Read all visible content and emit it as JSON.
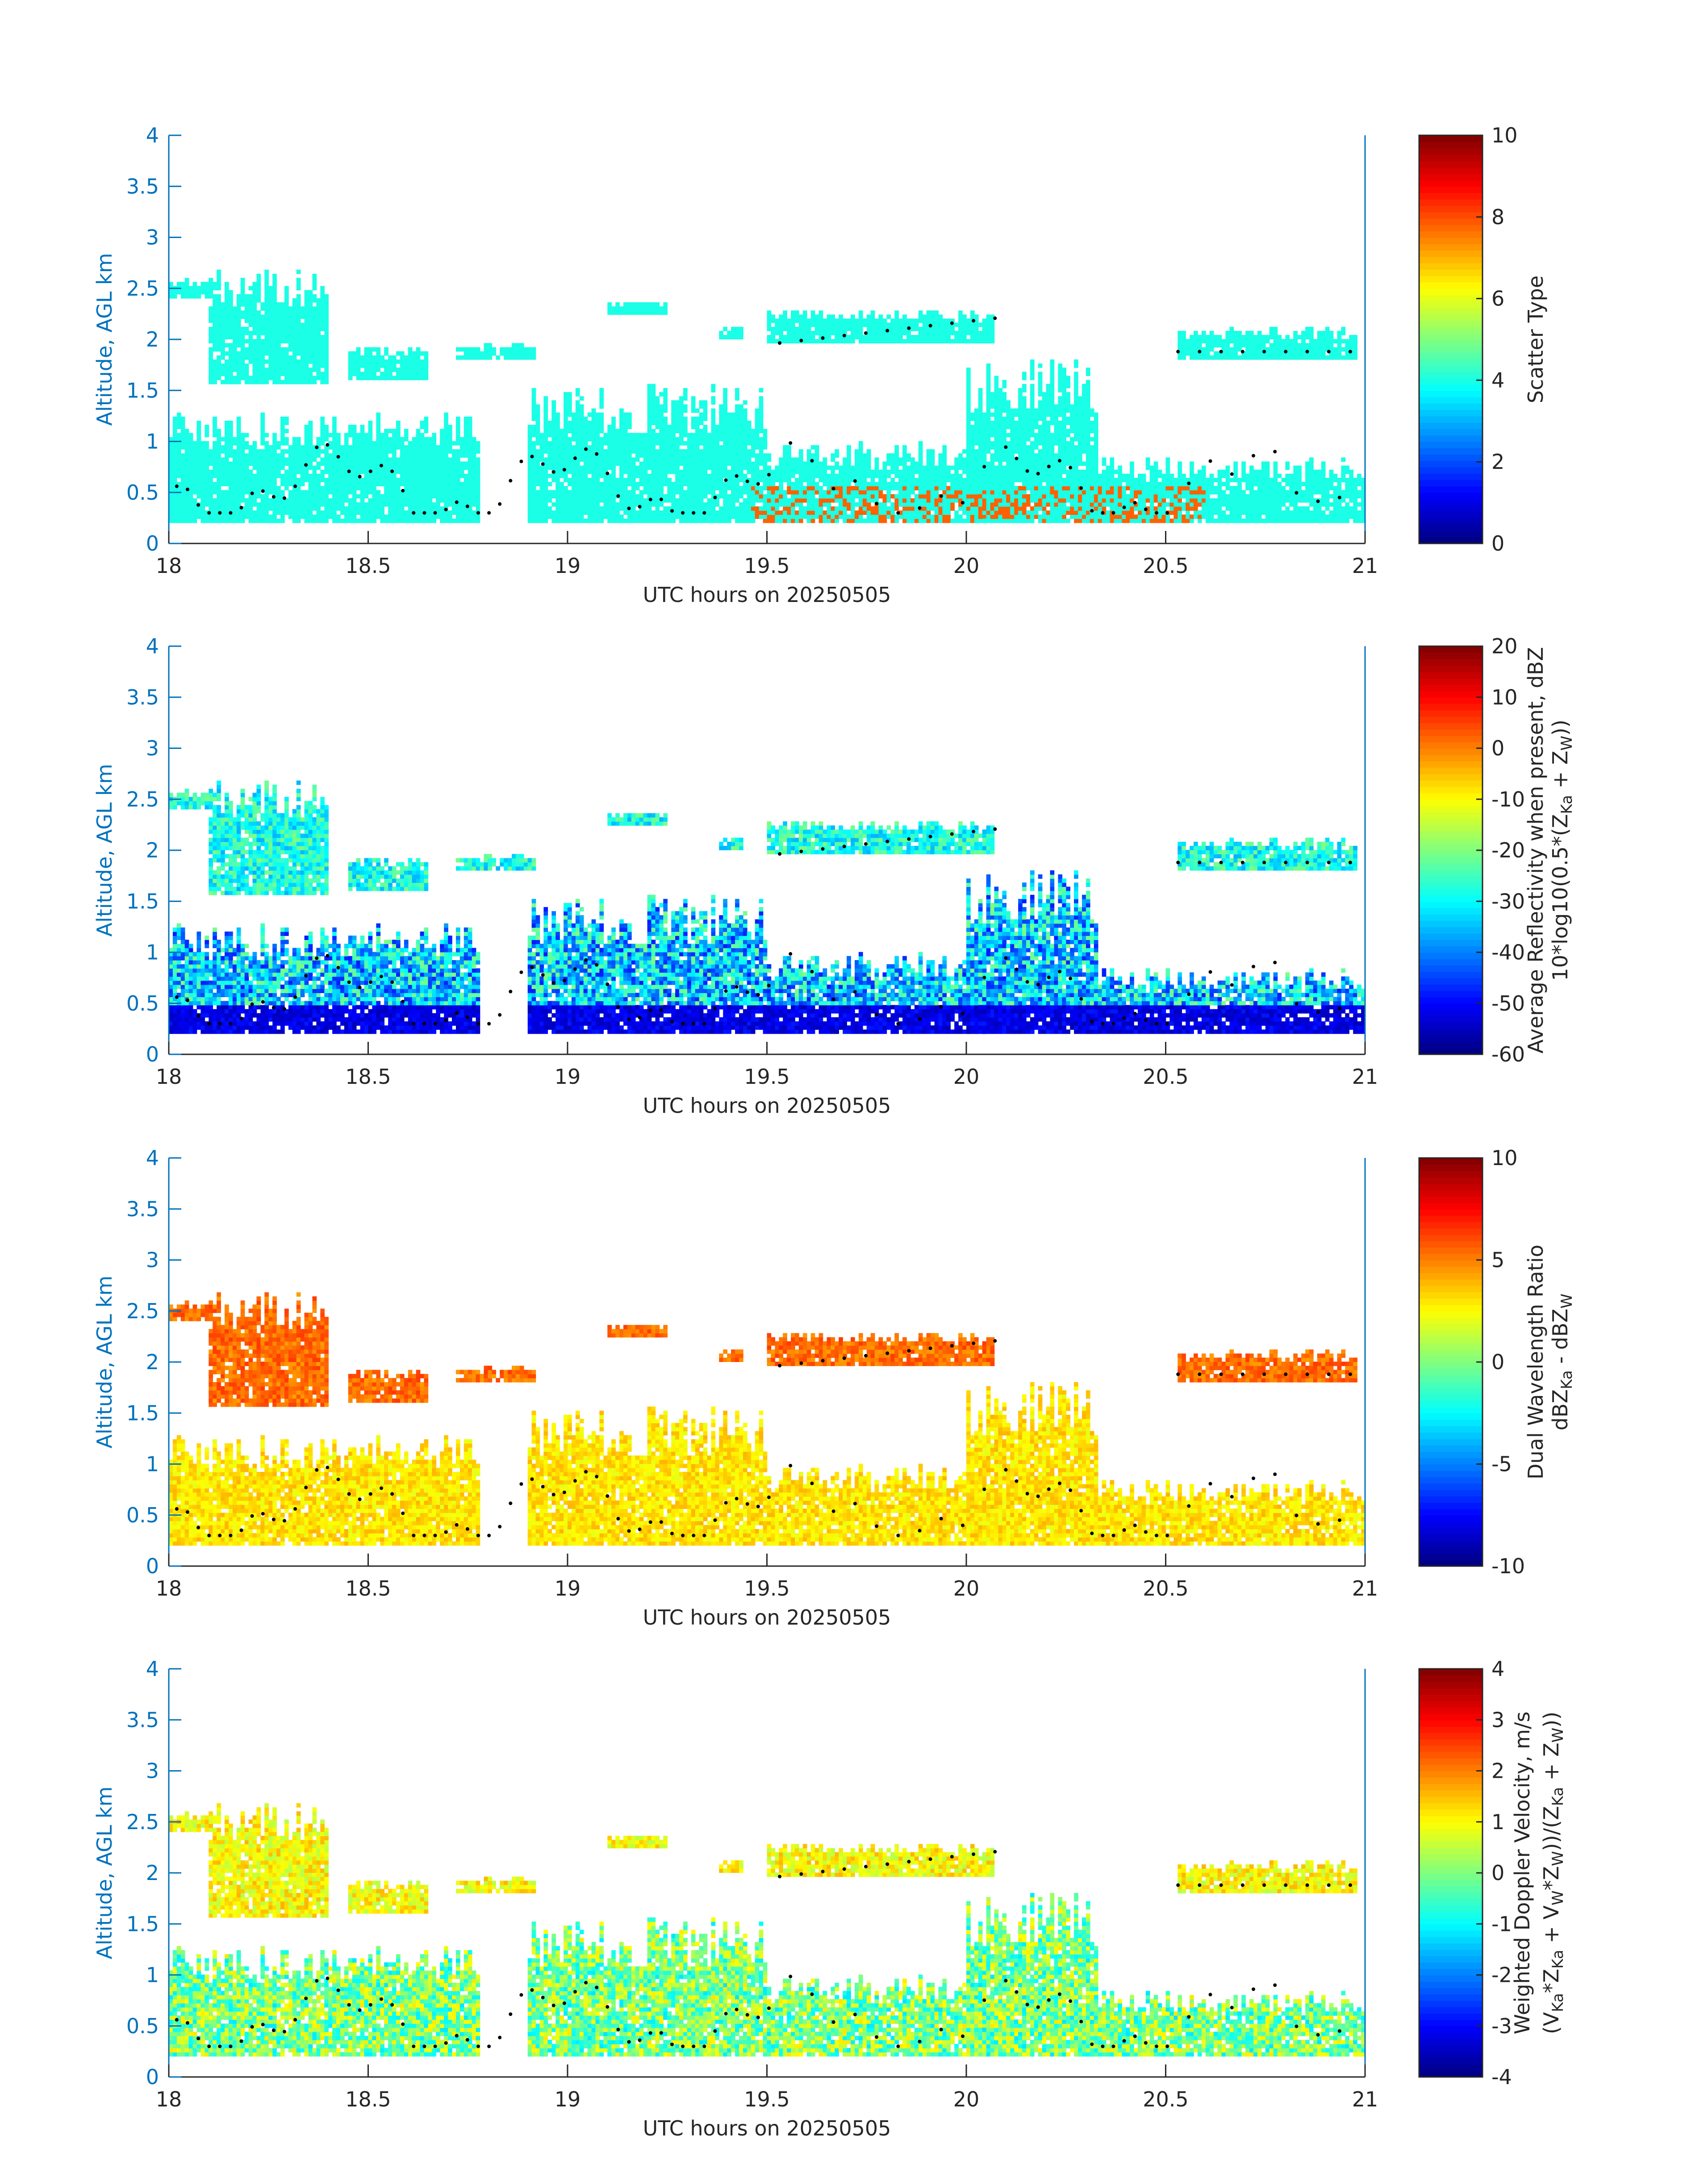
{
  "figure": {
    "background": "#ffffff",
    "axis_color": "#0072bd",
    "text_color": "#262626"
  },
  "chart_data": [
    {
      "type": "heatmap",
      "title": "",
      "xlabel": "UTC hours on 20250505",
      "ylabel": "Altitude, AGL km",
      "xlim": [
        18,
        21
      ],
      "ylim": [
        0,
        4
      ],
      "xticks": [
        "18",
        "18.5",
        "19",
        "19.5",
        "20",
        "20.5",
        "21"
      ],
      "yticks": [
        "0",
        "0.5",
        "1",
        "1.5",
        "2",
        "2.5",
        "3",
        "3.5",
        "4"
      ],
      "colorbar": {
        "label_lines": [
          "Scatter Type"
        ],
        "ticks": [
          "0",
          "2",
          "4",
          "6",
          "8",
          "10"
        ],
        "range": [
          0,
          10
        ],
        "colormap": "jet"
      },
      "dominant_value": 4,
      "secondary_value": 7.8,
      "dotted_line": "cloud-base marker (black dots)"
    },
    {
      "type": "heatmap",
      "title": "",
      "xlabel": "UTC hours on 20250505",
      "ylabel": "Altitude, AGL km",
      "xlim": [
        18,
        21
      ],
      "ylim": [
        0,
        4
      ],
      "xticks": [
        "18",
        "18.5",
        "19",
        "19.5",
        "20",
        "20.5",
        "21"
      ],
      "yticks": [
        "0",
        "0.5",
        "1",
        "1.5",
        "2",
        "2.5",
        "3",
        "3.5",
        "4"
      ],
      "colorbar": {
        "label_lines": [
          "Average Reflectivity when present, dBZ",
          "10*log10(0.5*(Z",
          "Ka",
          " + Z",
          "W",
          "))"
        ],
        "ticks": [
          "-60",
          "-50",
          "-40",
          "-30",
          "-20",
          "-10",
          "0",
          "10",
          "20"
        ],
        "range": [
          -60,
          20
        ],
        "colormap": "jet"
      }
    },
    {
      "type": "heatmap",
      "title": "",
      "xlabel": "UTC hours on 20250505",
      "ylabel": "Altitude, AGL km",
      "xlim": [
        18,
        21
      ],
      "ylim": [
        0,
        4
      ],
      "xticks": [
        "18",
        "18.5",
        "19",
        "19.5",
        "20",
        "20.5",
        "21"
      ],
      "yticks": [
        "0",
        "0.5",
        "1",
        "1.5",
        "2",
        "2.5",
        "3",
        "3.5",
        "4"
      ],
      "colorbar": {
        "label_lines": [
          "Dual Wavelength Ratio",
          "dBZ",
          "Ka",
          " - dBZ",
          "W"
        ],
        "ticks": [
          "-10",
          "-5",
          "0",
          "5",
          "10"
        ],
        "range": [
          -10,
          10
        ],
        "colormap": "jet"
      }
    },
    {
      "type": "heatmap",
      "title": "",
      "xlabel": "UTC hours on 20250505",
      "ylabel": "Altitude, AGL km",
      "xlim": [
        18,
        21
      ],
      "ylim": [
        0,
        4
      ],
      "xticks": [
        "18",
        "18.5",
        "19",
        "19.5",
        "20",
        "20.5",
        "21"
      ],
      "yticks": [
        "0",
        "0.5",
        "1",
        "1.5",
        "2",
        "2.5",
        "3",
        "3.5",
        "4"
      ],
      "colorbar": {
        "label_lines": [
          "Weighted Doppler Velocity, m/s",
          "(V",
          "Ka",
          "*Z",
          "Ka",
          " + V",
          "W",
          "*Z",
          "W",
          "))/(Z",
          "Ka",
          " + Z",
          "W",
          "))"
        ],
        "ticks": [
          "-4",
          "-3",
          "-2",
          "-1",
          "0",
          "1",
          "2",
          "3",
          "4"
        ],
        "range": [
          -4,
          4
        ],
        "colormap": "jet"
      }
    }
  ],
  "cloud_regions": [
    {
      "t0": 18.0,
      "t1": 18.12,
      "z0": 2.4,
      "z1": 2.6
    },
    {
      "t0": 18.1,
      "t1": 18.4,
      "z0": 1.55,
      "z1": 2.7
    },
    {
      "t0": 18.45,
      "t1": 18.65,
      "z0": 1.6,
      "z1": 1.95
    },
    {
      "t0": 18.72,
      "t1": 18.92,
      "z0": 1.82,
      "z1": 1.95
    },
    {
      "t0": 19.1,
      "t1": 19.25,
      "z0": 2.25,
      "z1": 2.38
    },
    {
      "t0": 19.38,
      "t1": 19.44,
      "z0": 2.0,
      "z1": 2.12
    },
    {
      "t0": 19.5,
      "t1": 20.07,
      "z0": 1.95,
      "z1": 2.3
    },
    {
      "t0": 20.53,
      "t1": 20.98,
      "z0": 1.82,
      "z1": 2.12
    },
    {
      "t0": 18.0,
      "t1": 18.78,
      "z0": 0.2,
      "z1": 1.3
    },
    {
      "t0": 18.9,
      "t1": 19.5,
      "z0": 0.2,
      "z1": 1.55
    },
    {
      "t0": 19.5,
      "t1": 20.05,
      "z0": 0.2,
      "z1": 1.0
    },
    {
      "t0": 20.0,
      "t1": 20.33,
      "z0": 0.2,
      "z1": 1.8
    },
    {
      "t0": 20.3,
      "t1": 21.0,
      "z0": 0.2,
      "z1": 0.85
    }
  ]
}
